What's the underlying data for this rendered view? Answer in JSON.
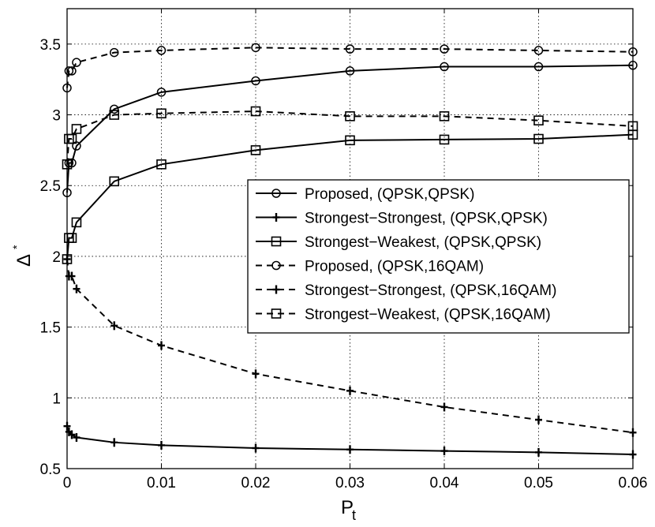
{
  "chart_data": {
    "type": "line",
    "title": "",
    "xlabel": "P",
    "xlabel_subscript": "t",
    "ylabel": "Δ",
    "ylabel_superscript": "*",
    "xlim": [
      0,
      0.06
    ],
    "ylim": [
      0.5,
      3.75
    ],
    "xticks": [
      0,
      0.01,
      0.02,
      0.03,
      0.04,
      0.05,
      0.06
    ],
    "xtick_labels": [
      "0",
      "0.01",
      "0.02",
      "0.03",
      "0.04",
      "0.05",
      "0.06"
    ],
    "yticks": [
      0.5,
      1,
      1.5,
      2,
      2.5,
      3,
      3.5
    ],
    "ytick_labels": [
      "0.5",
      "1",
      "1.5",
      "2",
      "2.5",
      "3",
      "3.5"
    ],
    "grid": true,
    "legend_position": "center-right",
    "x": [
      0,
      0.0002,
      0.0005,
      0.001,
      0.005,
      0.01,
      0.02,
      0.03,
      0.04,
      0.05,
      0.06
    ],
    "series": [
      {
        "name": "Proposed, (QPSK,QPSK)",
        "line": "solid",
        "marker": "circle",
        "values": [
          2.45,
          2.66,
          2.66,
          2.78,
          3.04,
          3.16,
          3.24,
          3.31,
          3.34,
          3.34,
          3.35
        ]
      },
      {
        "name": "Strongest−Strongest, (QPSK,QPSK)",
        "line": "solid",
        "marker": "plus",
        "values": [
          0.8,
          0.76,
          0.74,
          0.72,
          0.685,
          0.665,
          0.645,
          0.635,
          0.625,
          0.615,
          0.6
        ]
      },
      {
        "name": "Strongest−Weakest, (QPSK,QPSK)",
        "line": "solid",
        "marker": "square",
        "values": [
          1.98,
          2.13,
          2.13,
          2.24,
          2.53,
          2.65,
          2.75,
          2.82,
          2.825,
          2.83,
          2.86
        ]
      },
      {
        "name": "Proposed, (QPSK,16QAM)",
        "line": "dashed",
        "marker": "circle",
        "values": [
          3.19,
          3.31,
          3.31,
          3.37,
          3.44,
          3.455,
          3.475,
          3.465,
          3.465,
          3.455,
          3.445
        ]
      },
      {
        "name": "Strongest−Strongest, (QPSK,16QAM)",
        "line": "dashed",
        "marker": "plus",
        "values": [
          1.98,
          1.86,
          1.86,
          1.77,
          1.51,
          1.37,
          1.17,
          1.05,
          0.935,
          0.845,
          0.755
        ]
      },
      {
        "name": "Strongest−Weakest, (QPSK,16QAM)",
        "line": "dashed",
        "marker": "square",
        "values": [
          2.65,
          2.83,
          2.83,
          2.9,
          3.0,
          3.01,
          3.025,
          2.99,
          2.99,
          2.96,
          2.92
        ]
      }
    ]
  }
}
